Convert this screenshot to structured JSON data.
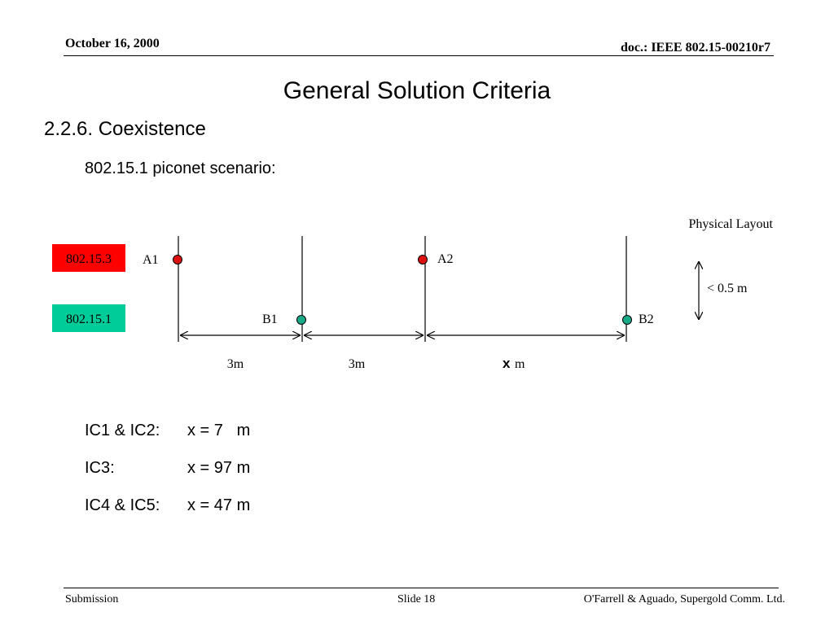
{
  "header": {
    "date": "October 16, 2000",
    "doc_id": "doc.: IEEE 802.15-00210r7"
  },
  "slide": {
    "title": "General Solution Criteria",
    "section": "2.2.6. Coexistence",
    "subsection": "802.15.1 piconet scenario:"
  },
  "diagram": {
    "heading": "Physical Layout",
    "legend": [
      {
        "label": "802.15.3",
        "color": "#ff0000"
      },
      {
        "label": "802.15.1",
        "color": "#00cc99"
      }
    ],
    "nodes": {
      "a1": "A1",
      "a2": "A2",
      "b1": "B1",
      "b2": "B2"
    },
    "node_colors": {
      "a": "#dd1111",
      "b": "#1aaa88"
    },
    "distances": {
      "d1": "3m",
      "d2": "3m",
      "d3_var": "x",
      "d3_unit": "m"
    },
    "separation": "< 0.5 m"
  },
  "cases": [
    {
      "label": "IC1 & IC2:",
      "value": "x = 7   m"
    },
    {
      "label": "IC3:",
      "value": "x = 97 m"
    },
    {
      "label": "IC4 & IC5:",
      "value": "x = 47 m"
    }
  ],
  "footer": {
    "left": "Submission",
    "center": "Slide 18",
    "right": "O'Farrell & Aguado, Supergold Comm. Ltd."
  }
}
